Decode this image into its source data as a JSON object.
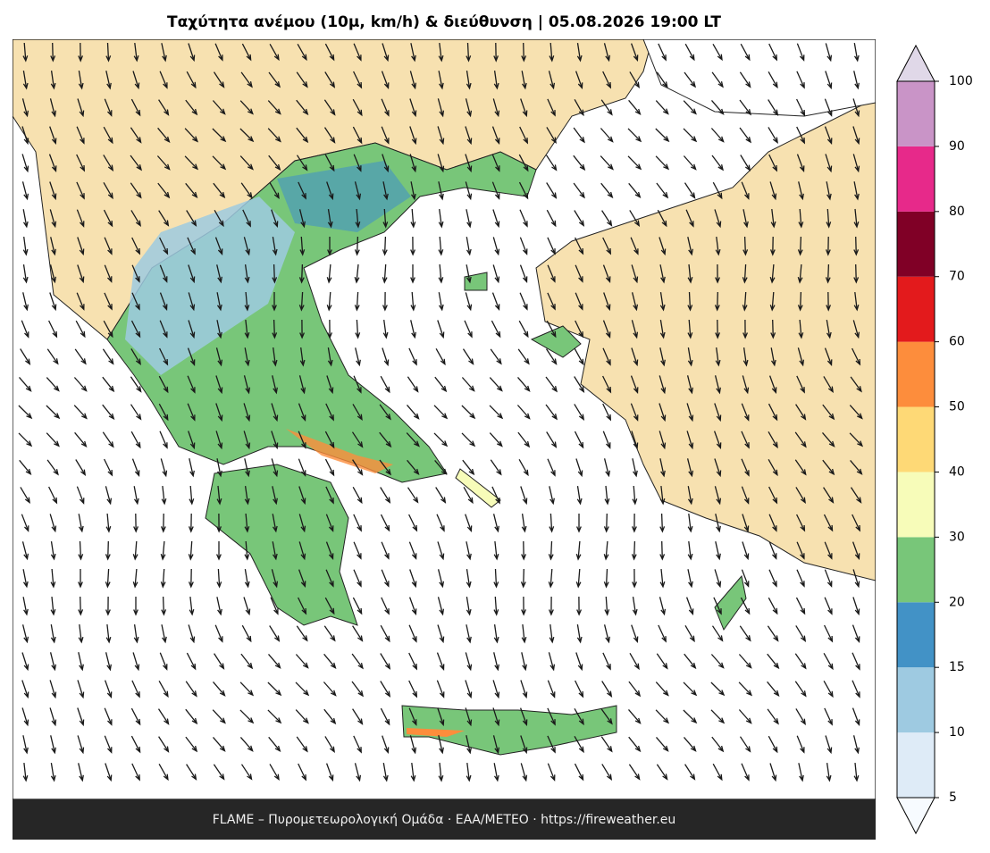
{
  "title": "Ταχύτητα ανέμου (10μ, km/h) & διεύθυνση  |  05.08.2026 19:00 LT",
  "footer": "FLAME – Πυρομετεωρολογική Ομάδα · ΕΑΑ/METEO · https://fireweather.eu",
  "colorbar": {
    "ticks": [
      5,
      10,
      15,
      20,
      30,
      40,
      50,
      60,
      70,
      80,
      90,
      100
    ],
    "colors": [
      "#deebf7",
      "#9ecae1",
      "#4292c6",
      "#78c679",
      "#f7fcb9",
      "#fed976",
      "#fd8d3c",
      "#e31a1c",
      "#800026",
      "#e7298a",
      "#c994c7"
    ],
    "under_color": "#f7fbff",
    "over_color": "#e0d8e8"
  }
}
